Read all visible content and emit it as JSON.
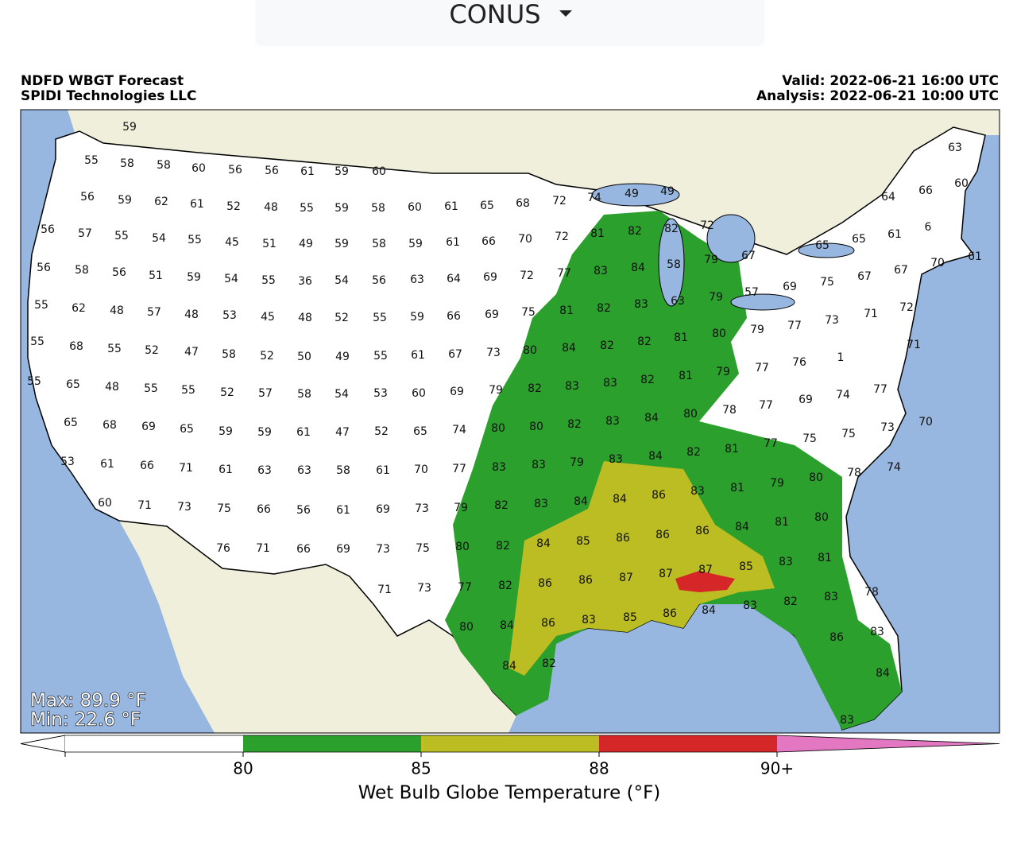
{
  "dropdown": {
    "label": "CONUS"
  },
  "map": {
    "title_lines": [
      "NDFD WBGT Forecast",
      "SPIDI Technologies LLC"
    ],
    "valid": "Valid: 2022-06-21 16:00 UTC",
    "analysis": "Analysis: 2022-06-21 10:00 UTC",
    "max": "Max: 89.9 °F",
    "min": "Min: 22.6 °F",
    "point_labels": [
      59,
      55,
      58,
      58,
      60,
      56,
      56,
      61,
      59,
      60,
      56,
      59,
      62,
      61,
      52,
      48,
      55,
      59,
      58,
      60,
      61,
      65,
      68,
      72,
      74,
      49,
      49,
      64,
      66,
      60,
      63,
      56,
      57,
      55,
      54,
      55,
      45,
      51,
      49,
      59,
      58,
      59,
      61,
      66,
      70,
      72,
      81,
      82,
      82,
      72,
      65,
      65,
      61,
      6,
      56,
      58,
      56,
      51,
      59,
      54,
      55,
      36,
      54,
      56,
      63,
      64,
      69,
      72,
      77,
      83,
      84,
      58,
      79,
      67,
      75,
      67,
      67,
      70,
      61,
      55,
      62,
      48,
      57,
      48,
      53,
      45,
      48,
      52,
      55,
      59,
      66,
      69,
      75,
      81,
      82,
      83,
      63,
      79,
      57,
      69,
      79,
      77,
      73,
      71,
      72,
      55,
      68,
      55,
      52,
      47,
      58,
      52,
      50,
      49,
      55,
      61,
      67,
      73,
      80,
      84,
      82,
      82,
      81,
      80,
      79,
      77,
      76,
      1,
      71,
      55,
      65,
      48,
      55,
      55,
      52,
      57,
      58,
      54,
      53,
      60,
      69,
      79,
      82,
      83,
      83,
      82,
      81,
      80,
      78,
      77,
      69,
      74,
      77,
      84,
      65,
      68,
      69,
      65,
      59,
      59,
      61,
      47,
      52,
      65,
      74,
      80,
      80,
      82,
      83,
      84,
      82,
      81,
      77,
      75,
      75,
      73,
      70,
      53,
      61,
      66,
      71,
      61,
      63,
      63,
      58,
      61,
      70,
      77,
      83,
      83,
      79,
      83,
      86,
      83,
      81,
      79,
      80,
      78,
      74,
      60,
      71,
      73,
      75,
      66,
      56,
      61,
      69,
      73,
      79,
      82,
      83,
      84,
      84,
      86,
      86,
      84,
      81,
      80,
      76,
      71,
      66,
      69,
      73,
      75,
      80,
      82,
      84,
      85,
      86,
      71,
      73,
      77,
      82,
      86,
      86,
      87,
      87,
      87,
      85,
      83,
      81,
      80,
      84,
      86,
      83,
      85,
      86,
      84,
      83,
      82,
      83,
      78,
      84,
      82,
      83,
      86,
      84,
      83
    ],
    "colorbar": {
      "label": "Wet Bulb Globe Temperature (°F)",
      "colors": [
        "#ffffff",
        "#2ca02c",
        "#bcbd22",
        "#d62728",
        "#e377c2"
      ],
      "ticks": [
        80,
        85,
        88,
        {
          "value": 90,
          "label": "90+"
        }
      ]
    }
  }
}
